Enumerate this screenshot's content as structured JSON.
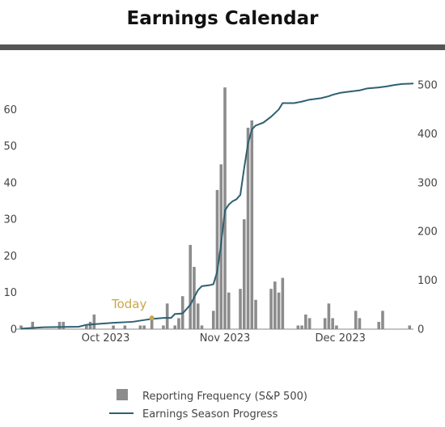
{
  "title": "Earnings Calendar",
  "colors": {
    "bar": "#8c8c8c",
    "line": "#2f5f73",
    "today": "#c8a84b",
    "axis": "#888888",
    "rule": "#555555"
  },
  "chart_data": {
    "type": "bar",
    "x_axis_type": "date",
    "xlim": [
      "2023-09-09",
      "2023-12-20"
    ],
    "x_ticks": [
      {
        "date": "2023-10-01",
        "label": "Oct 2023"
      },
      {
        "date": "2023-11-01",
        "label": "Nov 2023"
      },
      {
        "date": "2023-12-01",
        "label": "Dec 2023"
      }
    ],
    "y_left": {
      "lim": [
        0,
        70
      ],
      "ticks": [
        0,
        10,
        20,
        30,
        40,
        50,
        60
      ]
    },
    "y_right": {
      "lim": [
        0,
        525
      ],
      "ticks": [
        0,
        100,
        200,
        300,
        400,
        500
      ]
    },
    "today": {
      "date": "2023-10-13",
      "label": "Today",
      "value": 23
    },
    "series": [
      {
        "name": "Reporting Frequency (S&P 500)",
        "type": "bar",
        "axis": "left",
        "points": [
          [
            "2023-09-09",
            1
          ],
          [
            "2023-09-12",
            2
          ],
          [
            "2023-09-19",
            2
          ],
          [
            "2023-09-20",
            2
          ],
          [
            "2023-09-26",
            1
          ],
          [
            "2023-09-27",
            2
          ],
          [
            "2023-09-28",
            4
          ],
          [
            "2023-10-03",
            1
          ],
          [
            "2023-10-06",
            1
          ],
          [
            "2023-10-10",
            1
          ],
          [
            "2023-10-11",
            1
          ],
          [
            "2023-10-13",
            3
          ],
          [
            "2023-10-16",
            1
          ],
          [
            "2023-10-17",
            7
          ],
          [
            "2023-10-19",
            1
          ],
          [
            "2023-10-20",
            3
          ],
          [
            "2023-10-21",
            9
          ],
          [
            "2023-10-23",
            23
          ],
          [
            "2023-10-24",
            17
          ],
          [
            "2023-10-25",
            7
          ],
          [
            "2023-10-26",
            1
          ],
          [
            "2023-10-29",
            5
          ],
          [
            "2023-10-30",
            38
          ],
          [
            "2023-10-31",
            45
          ],
          [
            "2023-11-01",
            66
          ],
          [
            "2023-11-02",
            10
          ],
          [
            "2023-11-05",
            11
          ],
          [
            "2023-11-06",
            30
          ],
          [
            "2023-11-07",
            55
          ],
          [
            "2023-11-08",
            57
          ],
          [
            "2023-11-09",
            8
          ],
          [
            "2023-11-13",
            11
          ],
          [
            "2023-11-14",
            13
          ],
          [
            "2023-11-15",
            10
          ],
          [
            "2023-11-16",
            14
          ],
          [
            "2023-11-20",
            1
          ],
          [
            "2023-11-21",
            1
          ],
          [
            "2023-11-22",
            4
          ],
          [
            "2023-11-23",
            3
          ],
          [
            "2023-11-27",
            3
          ],
          [
            "2023-11-28",
            7
          ],
          [
            "2023-11-29",
            3
          ],
          [
            "2023-11-30",
            1
          ],
          [
            "2023-12-05",
            5
          ],
          [
            "2023-12-06",
            3
          ],
          [
            "2023-12-11",
            2
          ],
          [
            "2023-12-12",
            5
          ],
          [
            "2023-12-19",
            1
          ]
        ]
      },
      {
        "name": "Earnings Season Progress",
        "type": "line",
        "axis": "right",
        "points": [
          [
            "2023-09-09",
            1
          ],
          [
            "2023-09-15",
            4
          ],
          [
            "2023-09-24",
            5
          ],
          [
            "2023-09-26",
            9
          ],
          [
            "2023-10-03",
            13
          ],
          [
            "2023-10-08",
            15
          ],
          [
            "2023-10-13",
            21
          ],
          [
            "2023-10-16",
            23
          ],
          [
            "2023-10-18",
            23
          ],
          [
            "2023-10-19",
            31
          ],
          [
            "2023-10-21",
            32
          ],
          [
            "2023-10-23",
            50
          ],
          [
            "2023-10-25",
            80
          ],
          [
            "2023-10-26",
            88
          ],
          [
            "2023-10-28",
            90
          ],
          [
            "2023-10-29",
            92
          ],
          [
            "2023-10-30",
            118
          ],
          [
            "2023-10-31",
            175
          ],
          [
            "2023-11-01",
            243
          ],
          [
            "2023-11-02",
            255
          ],
          [
            "2023-11-03",
            262
          ],
          [
            "2023-11-04",
            266
          ],
          [
            "2023-11-05",
            275
          ],
          [
            "2023-11-06",
            330
          ],
          [
            "2023-11-07",
            380
          ],
          [
            "2023-11-08",
            409
          ],
          [
            "2023-11-09",
            417
          ],
          [
            "2023-11-11",
            423
          ],
          [
            "2023-11-13",
            435
          ],
          [
            "2023-11-15",
            450
          ],
          [
            "2023-11-16",
            463
          ],
          [
            "2023-11-19",
            463
          ],
          [
            "2023-11-21",
            466
          ],
          [
            "2023-11-23",
            470
          ],
          [
            "2023-11-26",
            473
          ],
          [
            "2023-11-28",
            477
          ],
          [
            "2023-11-29",
            480
          ],
          [
            "2023-12-01",
            484
          ],
          [
            "2023-12-03",
            486
          ],
          [
            "2023-12-06",
            489
          ],
          [
            "2023-12-08",
            493
          ],
          [
            "2023-12-11",
            495
          ],
          [
            "2023-12-13",
            497
          ],
          [
            "2023-12-15",
            500
          ],
          [
            "2023-12-17",
            502
          ],
          [
            "2023-12-20",
            503
          ]
        ]
      }
    ],
    "legend_position": "bottom-center",
    "grid": false
  }
}
